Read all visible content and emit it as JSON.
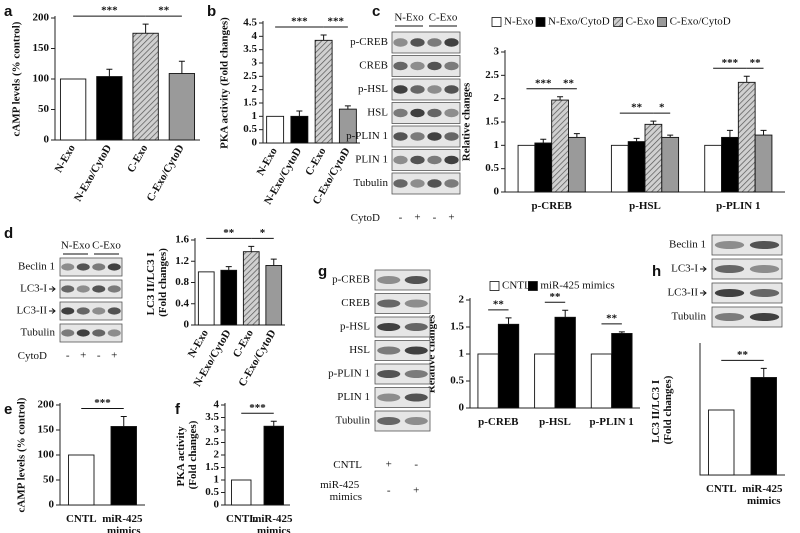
{
  "chart_data": [
    {
      "type": "bar",
      "label": "a",
      "ylabel": "cAMP levels (% control)",
      "categories": [
        "N-Exo",
        "N-Exo/CytoD",
        "C-Exo",
        "C-Exo/CytoD"
      ],
      "values": [
        100,
        104,
        175,
        109
      ],
      "errors": [
        null,
        12,
        15,
        20
      ],
      "colors": [
        "#ffffff",
        "#000000",
        "#d0d0d0",
        "#9a9a9a"
      ],
      "hatched": [
        false,
        false,
        true,
        false
      ],
      "ylim": [
        0,
        200
      ],
      "yticks": [
        0,
        50,
        100,
        150,
        200
      ],
      "significance": [
        {
          "text": "***",
          "between": [
            "N-Exo",
            "C-Exo"
          ]
        },
        {
          "text": "**",
          "between": [
            "C-Exo",
            "C-Exo/CytoD"
          ]
        }
      ]
    },
    {
      "type": "bar",
      "label": "b",
      "ylabel": "PKA activity (Fold changes)",
      "categories": [
        "N-Exo",
        "N-Exo/CytoD",
        "C-Exo",
        "C-Exo/CytoD"
      ],
      "values": [
        1,
        1,
        3.85,
        1.27
      ],
      "errors": [
        null,
        0.2,
        0.2,
        0.12
      ],
      "colors": [
        "#ffffff",
        "#000000",
        "#d0d0d0",
        "#9a9a9a"
      ],
      "hatched": [
        false,
        false,
        true,
        false
      ],
      "ylim": [
        0,
        4.5
      ],
      "yticks": [
        0,
        0.5,
        1,
        1.5,
        2,
        2.5,
        3,
        3.5,
        4,
        4.5
      ],
      "significance": [
        {
          "text": "***",
          "between": [
            "N-Exo",
            "C-Exo"
          ]
        },
        {
          "text": "***",
          "between": [
            "C-Exo",
            "C-Exo/CytoD"
          ]
        }
      ]
    },
    {
      "type": "grouped_bar",
      "label": "c",
      "ylabel": "Relative changes",
      "categories": [
        "p-CREB",
        "p-HSL",
        "p-PLIN 1"
      ],
      "series": [
        {
          "name": "N-Exo",
          "color": "#ffffff",
          "hatched": false,
          "values": [
            1,
            1,
            1
          ],
          "errors": [
            null,
            null,
            null
          ]
        },
        {
          "name": "N-Exo/CytoD",
          "color": "#000000",
          "hatched": false,
          "values": [
            1.05,
            1.08,
            1.17
          ],
          "errors": [
            0.08,
            0.07,
            0.15
          ]
        },
        {
          "name": "C-Exo",
          "color": "#d0d0d0",
          "hatched": true,
          "values": [
            1.97,
            1.45,
            2.35
          ],
          "errors": [
            0.07,
            0.07,
            0.13
          ]
        },
        {
          "name": "C-Exo/CytoD",
          "color": "#9a9a9a",
          "hatched": false,
          "values": [
            1.17,
            1.17,
            1.22
          ],
          "errors": [
            0.08,
            0.05,
            0.1
          ]
        }
      ],
      "ylim": [
        0,
        3
      ],
      "yticks": [
        0,
        0.5,
        1,
        1.5,
        2,
        2.5,
        3
      ],
      "legend": "top",
      "significance": [
        {
          "text": "***",
          "category": "p-CREB",
          "between": [
            "N-Exo",
            "C-Exo"
          ]
        },
        {
          "text": "**",
          "category": "p-CREB",
          "between": [
            "C-Exo",
            "C-Exo/CytoD"
          ]
        },
        {
          "text": "**",
          "category": "p-HSL",
          "between": [
            "N-Exo",
            "C-Exo"
          ]
        },
        {
          "text": "*",
          "category": "p-HSL",
          "between": [
            "C-Exo",
            "C-Exo/CytoD"
          ]
        },
        {
          "text": "***",
          "category": "p-PLIN 1",
          "between": [
            "N-Exo",
            "C-Exo"
          ]
        },
        {
          "text": "**",
          "category": "p-PLIN 1",
          "between": [
            "C-Exo",
            "C-Exo/CytoD"
          ]
        }
      ],
      "blot": {
        "groups": [
          "N-Exo",
          "C-Exo"
        ],
        "rows": [
          "p-CREB",
          "CREB",
          "p-HSL",
          "HSL",
          "p-PLIN 1",
          "PLIN 1",
          "Tubulin"
        ],
        "treatments": [
          {
            "name": "CytoD",
            "signs": [
              "-",
              "+",
              "-",
              "+"
            ]
          }
        ]
      }
    },
    {
      "type": "bar",
      "label": "d",
      "ylabel": "LC3 II/LC3 I (Fold changes)",
      "categories": [
        "N-Exo",
        "N-Exo/CytoD",
        "C-Exo",
        "C-Exo/CytoD"
      ],
      "values": [
        1,
        1.03,
        1.38,
        1.12
      ],
      "errors": [
        null,
        0.07,
        0.1,
        0.12
      ],
      "colors": [
        "#ffffff",
        "#000000",
        "#d0d0d0",
        "#9a9a9a"
      ],
      "hatched": [
        false,
        false,
        true,
        false
      ],
      "ylim": [
        0,
        1.6
      ],
      "yticks": [
        0,
        0.4,
        0.8,
        1.2,
        1.6
      ],
      "significance": [
        {
          "text": "**",
          "between": [
            "N-Exo",
            "C-Exo"
          ]
        },
        {
          "text": "*",
          "between": [
            "C-Exo",
            "C-Exo/CytoD"
          ]
        }
      ],
      "blot": {
        "groups": [
          "N-Exo",
          "C-Exo"
        ],
        "rows": [
          "Beclin 1",
          "LC3-I",
          "LC3-II",
          "Tubulin"
        ],
        "treatments": [
          {
            "name": "CytoD",
            "signs": [
              "-",
              "+",
              "-",
              "+"
            ]
          }
        ]
      }
    },
    {
      "type": "bar",
      "label": "e",
      "ylabel": "cAMP levels (% control)",
      "categories": [
        "CNTL",
        "miR-425 mimics"
      ],
      "values": [
        100,
        157
      ],
      "errors": [
        null,
        20
      ],
      "colors": [
        "#ffffff",
        "#000000"
      ],
      "hatched": [
        false,
        false
      ],
      "ylim": [
        0,
        200
      ],
      "yticks": [
        0,
        50,
        100,
        150,
        200
      ],
      "significance": [
        {
          "text": "***",
          "between": [
            "CNTL",
            "miR-425 mimics"
          ]
        }
      ]
    },
    {
      "type": "bar",
      "label": "f",
      "ylabel": "PKA activity (Fold changes)",
      "categories": [
        "CNTL",
        "miR-425 mimics"
      ],
      "values": [
        1,
        3.15
      ],
      "errors": [
        null,
        0.2
      ],
      "colors": [
        "#ffffff",
        "#000000"
      ],
      "hatched": [
        false,
        false
      ],
      "ylim": [
        0,
        4
      ],
      "yticks": [
        0,
        0.5,
        1,
        1.5,
        2,
        2.5,
        3,
        3.5,
        4
      ],
      "significance": [
        {
          "text": "***",
          "between": [
            "CNTL",
            "miR-425 mimics"
          ]
        }
      ]
    },
    {
      "type": "grouped_bar",
      "label": "g",
      "ylabel": "Relative changes",
      "categories": [
        "p-CREB",
        "p-HSL",
        "p-PLIN 1"
      ],
      "series": [
        {
          "name": "CNTL",
          "color": "#ffffff",
          "hatched": false,
          "values": [
            1,
            1,
            1
          ],
          "errors": [
            null,
            null,
            null
          ]
        },
        {
          "name": "miR-425 mimics",
          "color": "#000000",
          "hatched": false,
          "values": [
            1.55,
            1.68,
            1.38
          ],
          "errors": [
            0.12,
            0.13,
            0.03
          ]
        }
      ],
      "ylim": [
        0,
        2
      ],
      "yticks": [
        0,
        0.5,
        1,
        1.5,
        2
      ],
      "legend": "top",
      "significance": [
        {
          "text": "**",
          "category": "p-CREB",
          "between": [
            "CNTL",
            "miR-425 mimics"
          ]
        },
        {
          "text": "**",
          "category": "p-HSL",
          "between": [
            "CNTL",
            "miR-425 mimics"
          ]
        },
        {
          "text": "**",
          "category": "p-PLIN 1",
          "between": [
            "CNTL",
            "miR-425 mimics"
          ]
        }
      ],
      "blot": {
        "rows": [
          "p-CREB",
          "CREB",
          "p-HSL",
          "HSL",
          "p-PLIN 1",
          "PLIN 1",
          "Tubulin"
        ],
        "treatments": [
          {
            "name": "CNTL",
            "signs": [
              "+",
              "-"
            ]
          },
          {
            "name": "miR-425 mimics",
            "signs": [
              "-",
              "+"
            ]
          }
        ]
      }
    },
    {
      "type": "bar",
      "label": "h",
      "ylabel": "LC3 II/LC3 I (Fold changes)",
      "categories": [
        "CNTL",
        "miR-425 mimics"
      ],
      "values": [
        1,
        1.5
      ],
      "errors": [
        null,
        0.14
      ],
      "colors": [
        "#ffffff",
        "#000000"
      ],
      "hatched": [
        false,
        false
      ],
      "ylim": [
        0,
        2
      ],
      "significance": [
        {
          "text": "**",
          "between": [
            "CNTL",
            "miR-425 mimics"
          ]
        }
      ],
      "blot": {
        "rows": [
          "Beclin 1",
          "LC3-I",
          "LC3-II",
          "Tubulin"
        ]
      }
    }
  ]
}
